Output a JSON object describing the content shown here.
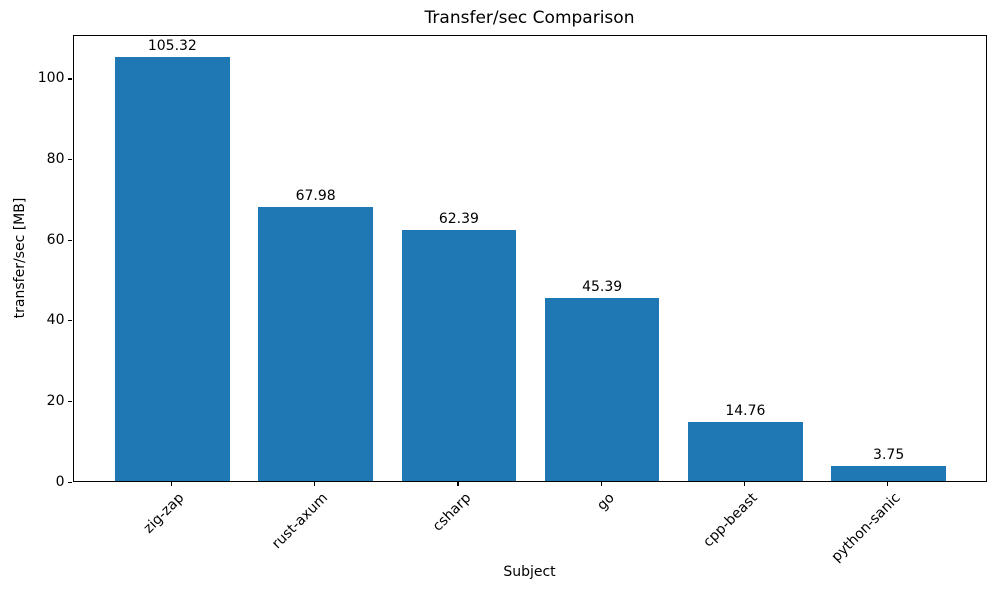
{
  "chart_data": {
    "type": "bar",
    "title": "Transfer/sec Comparison",
    "xlabel": "Subject",
    "ylabel": "transfer/sec [MB]",
    "categories": [
      "zig-zap",
      "rust-axum",
      "csharp",
      "go",
      "cpp-beast",
      "python-sanic"
    ],
    "values": [
      105.32,
      67.98,
      62.39,
      45.39,
      14.76,
      3.75
    ],
    "bar_value_labels": [
      "105.32",
      "67.98",
      "62.39",
      "45.39",
      "14.76",
      "3.75"
    ],
    "yticks": [
      0,
      20,
      40,
      60,
      80,
      100
    ],
    "ytick_labels": [
      "0",
      "20",
      "40",
      "60",
      "80",
      "100"
    ],
    "ylim": [
      0,
      110.9
    ],
    "xlim": [
      -0.69,
      5.69
    ],
    "bar_width_units": 0.8,
    "x_tick_rotation_deg": 45,
    "grid": false,
    "legend": "none",
    "bar_color": "#1f77b4",
    "text_color": "#000000",
    "axis_color": "#000000",
    "background_color": "#ffffff"
  }
}
